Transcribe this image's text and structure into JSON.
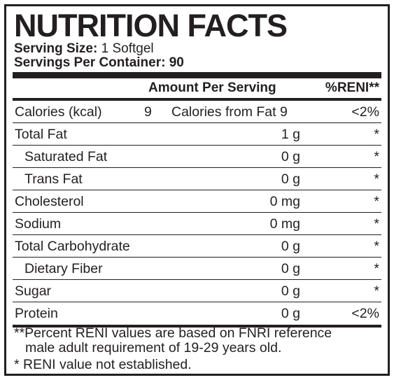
{
  "label": {
    "title": "NUTRITION FACTS",
    "serving_size_label": "Serving Size:",
    "serving_size_value": "1 Softgel",
    "servings_per_container_label": "Servings Per Container:",
    "servings_per_container_value": "90",
    "col_amount": "Amount Per Serving",
    "col_reni": "%RENI**",
    "calories_label": "Calories (kcal)",
    "calories_value": "9",
    "calories_from_fat_label": "Calories from Fat",
    "calories_from_fat_value": "9",
    "calories_pct": "<2%",
    "rows": [
      {
        "name": "Total Fat",
        "amount": "1 g",
        "pct": "*"
      },
      {
        "name": "Saturated Fat",
        "amount": "0 g",
        "pct": "*"
      },
      {
        "name": "Trans Fat",
        "amount": "0 g",
        "pct": "*"
      },
      {
        "name": "Cholesterol",
        "amount": "0 mg",
        "pct": "*"
      },
      {
        "name": "Sodium",
        "amount": "0 mg",
        "pct": "*"
      },
      {
        "name": "Total Carbohydrate",
        "amount": "0 g",
        "pct": "*"
      },
      {
        "name": "Dietary Fiber",
        "amount": "0 g",
        "pct": "*"
      },
      {
        "name": "Sugar",
        "amount": "0 g",
        "pct": "*"
      },
      {
        "name": "Protein",
        "amount": "0 g",
        "pct": "<2%"
      }
    ],
    "footnote_1": "**Percent RENI values are based on FNRI reference",
    "footnote_2": "male adult requirement of 19-29 years old.",
    "footnote_3": "* RENI value not established."
  }
}
